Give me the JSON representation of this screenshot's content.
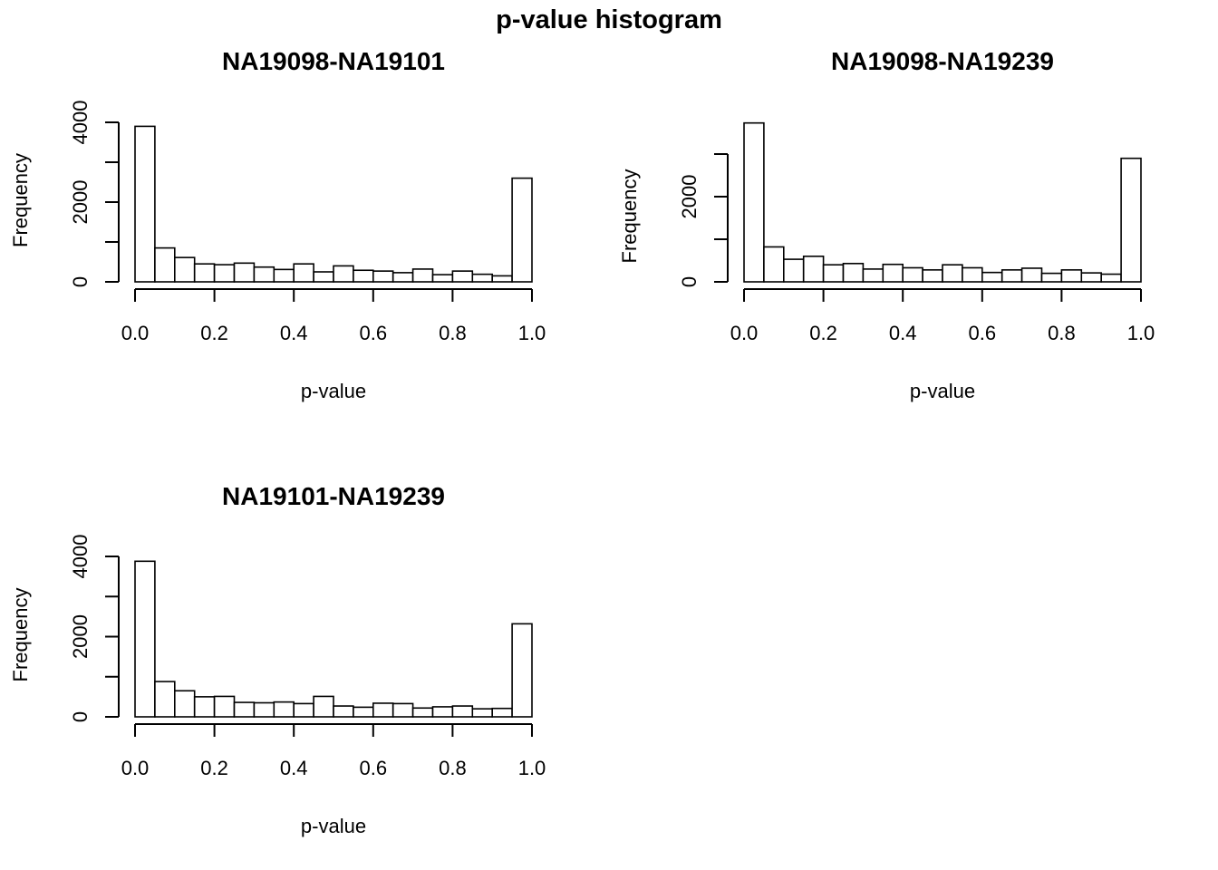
{
  "figure": {
    "title": "p-value histogram"
  },
  "chart_data": [
    {
      "type": "bar",
      "title": "NA19098-NA19101",
      "xlabel": "p-value",
      "ylabel": "Frequency",
      "bin_width": 0.05,
      "x": [
        0.025,
        0.075,
        0.125,
        0.175,
        0.225,
        0.275,
        0.325,
        0.375,
        0.425,
        0.475,
        0.525,
        0.575,
        0.625,
        0.675,
        0.725,
        0.775,
        0.825,
        0.875,
        0.925,
        0.975
      ],
      "values": [
        3900,
        850,
        610,
        450,
        430,
        470,
        370,
        310,
        450,
        250,
        400,
        290,
        270,
        230,
        320,
        180,
        270,
        190,
        150,
        2600
      ],
      "xlim": [
        0,
        1
      ],
      "ylim": [
        0,
        4000
      ],
      "xticks": [
        "0.0",
        "0.2",
        "0.4",
        "0.6",
        "0.8",
        "1.0"
      ],
      "yticks": [
        0,
        1000,
        2000,
        3000,
        4000
      ],
      "ytick_labels": [
        "0",
        "",
        "2000",
        "",
        "4000"
      ],
      "grid": false
    },
    {
      "type": "bar",
      "title": "NA19098-NA19239",
      "xlabel": "p-value",
      "ylabel": "Frequency",
      "bin_width": 0.05,
      "x": [
        0.025,
        0.075,
        0.125,
        0.175,
        0.225,
        0.275,
        0.325,
        0.375,
        0.425,
        0.475,
        0.525,
        0.575,
        0.625,
        0.675,
        0.725,
        0.775,
        0.825,
        0.875,
        0.925,
        0.975
      ],
      "values": [
        3730,
        820,
        530,
        600,
        400,
        430,
        300,
        410,
        330,
        280,
        400,
        330,
        220,
        280,
        320,
        200,
        280,
        210,
        180,
        2900
      ],
      "xlim": [
        0,
        1
      ],
      "ylim": [
        0,
        3000
      ],
      "xticks": [
        "0.0",
        "0.2",
        "0.4",
        "0.6",
        "0.8",
        "1.0"
      ],
      "yticks": [
        0,
        1000,
        2000,
        3000
      ],
      "ytick_labels": [
        "0",
        "",
        "2000",
        ""
      ],
      "grid": false
    },
    {
      "type": "bar",
      "title": "NA19101-NA19239",
      "xlabel": "p-value",
      "ylabel": "Frequency",
      "bin_width": 0.05,
      "x": [
        0.025,
        0.075,
        0.125,
        0.175,
        0.225,
        0.275,
        0.325,
        0.375,
        0.425,
        0.475,
        0.525,
        0.575,
        0.625,
        0.675,
        0.725,
        0.775,
        0.825,
        0.875,
        0.925,
        0.975
      ],
      "values": [
        3880,
        880,
        650,
        500,
        510,
        360,
        350,
        370,
        330,
        510,
        270,
        240,
        340,
        330,
        220,
        250,
        270,
        200,
        210,
        2320
      ],
      "xlim": [
        0,
        1
      ],
      "ylim": [
        0,
        4000
      ],
      "xticks": [
        "0.0",
        "0.2",
        "0.4",
        "0.6",
        "0.8",
        "1.0"
      ],
      "yticks": [
        0,
        1000,
        2000,
        3000,
        4000
      ],
      "ytick_labels": [
        "0",
        "",
        "2000",
        "",
        "4000"
      ],
      "grid": false
    }
  ]
}
